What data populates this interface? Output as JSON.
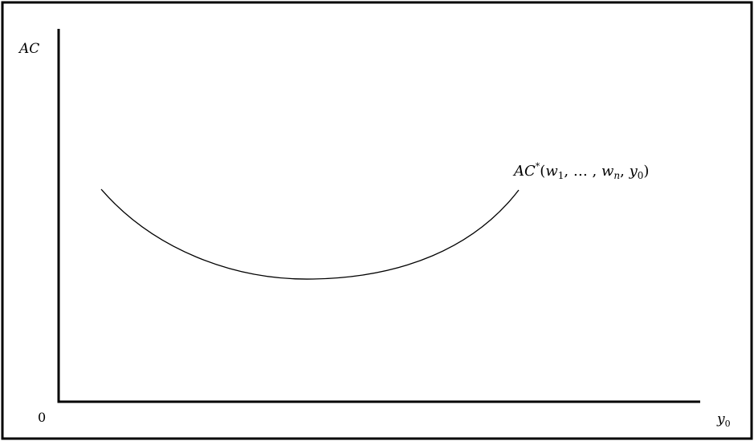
{
  "diagram": {
    "y_axis_label": "AC",
    "x_axis_label_base": "y",
    "x_axis_label_sub": "0",
    "origin_label": "0",
    "curve_label": {
      "prefix": "AC",
      "star": "*",
      "open": "(",
      "w1_base": "w",
      "w1_sub": "1",
      "sep1": ", … , ",
      "wn_base": "w",
      "wn_sub": "n",
      "sep2": ", ",
      "y0_base": "y",
      "y0_sub": "0",
      "close": ")"
    },
    "colors": {
      "ink": "#000000",
      "background": "#ffffff",
      "border": "#000000"
    }
  }
}
